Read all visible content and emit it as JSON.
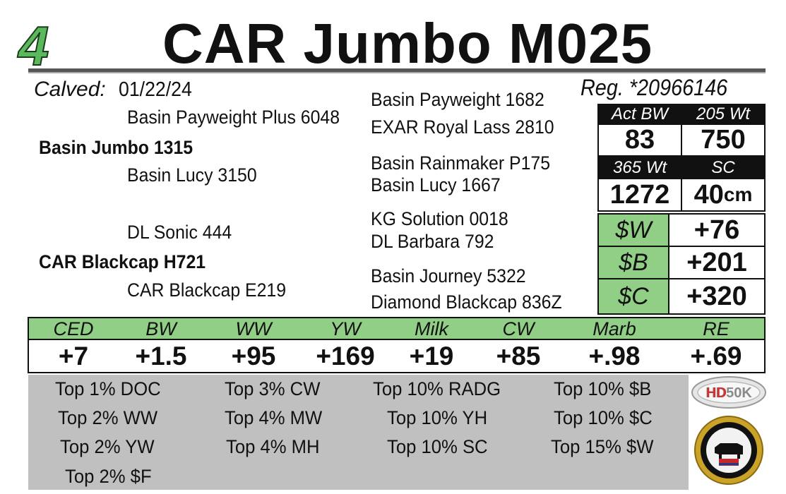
{
  "header": {
    "lot_number": "4",
    "animal_name": "CAR Jumbo M025"
  },
  "birth": {
    "calved_label": "Calved:",
    "calved_date": "01/22/24",
    "registration": "Reg. *20966146"
  },
  "pedigree": {
    "sire": "Basin Jumbo 1315",
    "sire_sire": "Basin Payweight Plus 6048",
    "sire_dam": "Basin Lucy 3150",
    "sss": "Basin Payweight 1682",
    "ssd": "EXAR Royal Lass 2810",
    "sds": "Basin Rainmaker P175",
    "sdd": "Basin Lucy 1667",
    "dam": "CAR Blackcap H721",
    "dam_sire": "DL Sonic 444",
    "dam_dam": "CAR Blackcap E219",
    "dss": "KG Solution 0018",
    "dsd": "DL Barbara 792",
    "dds": "Basin Journey 5322",
    "ddd": "Diamond Blackcap 836Z"
  },
  "performance": {
    "act_bw_label": "Act BW",
    "act_bw": "83",
    "wt205_label": "205 Wt",
    "wt205": "750",
    "wt365_label": "365 Wt",
    "wt365": "1272",
    "sc_label": "SC",
    "sc": "40",
    "sc_unit": "cm"
  },
  "indexes": [
    {
      "label": "$W",
      "value": "+76"
    },
    {
      "label": "$B",
      "value": "+201"
    },
    {
      "label": "$C",
      "value": "+320"
    }
  ],
  "epds": [
    {
      "label": "CED",
      "value": "+7"
    },
    {
      "label": "BW",
      "value": "+1.5"
    },
    {
      "label": "WW",
      "value": "+95"
    },
    {
      "label": "YW",
      "value": "+169"
    },
    {
      "label": "Milk",
      "value": "+19"
    },
    {
      "label": "CW",
      "value": "+85"
    },
    {
      "label": "Marb",
      "value": "+.98"
    },
    {
      "label": "RE",
      "value": "+.69"
    }
  ],
  "rankings": {
    "col1": [
      "Top 1% DOC",
      "Top 2% WW",
      "Top 2% YW",
      "Top 2% $F"
    ],
    "col2": [
      "Top 3% CW",
      "Top 4% MW",
      "Top 4% MH"
    ],
    "col3": [
      "Top 10% RADG",
      "Top 10% YH",
      "Top 10% SC"
    ],
    "col4": [
      "Top 10% $B",
      "Top 10% $C",
      "Top 15% $W"
    ]
  },
  "logos": {
    "logo1_text": "HD50K",
    "logo1_accent": "HD"
  },
  "colors": {
    "lot_green": "#5cb85c",
    "panel_green": "#92cf86",
    "ranking_grey": "#c0c0c0"
  }
}
